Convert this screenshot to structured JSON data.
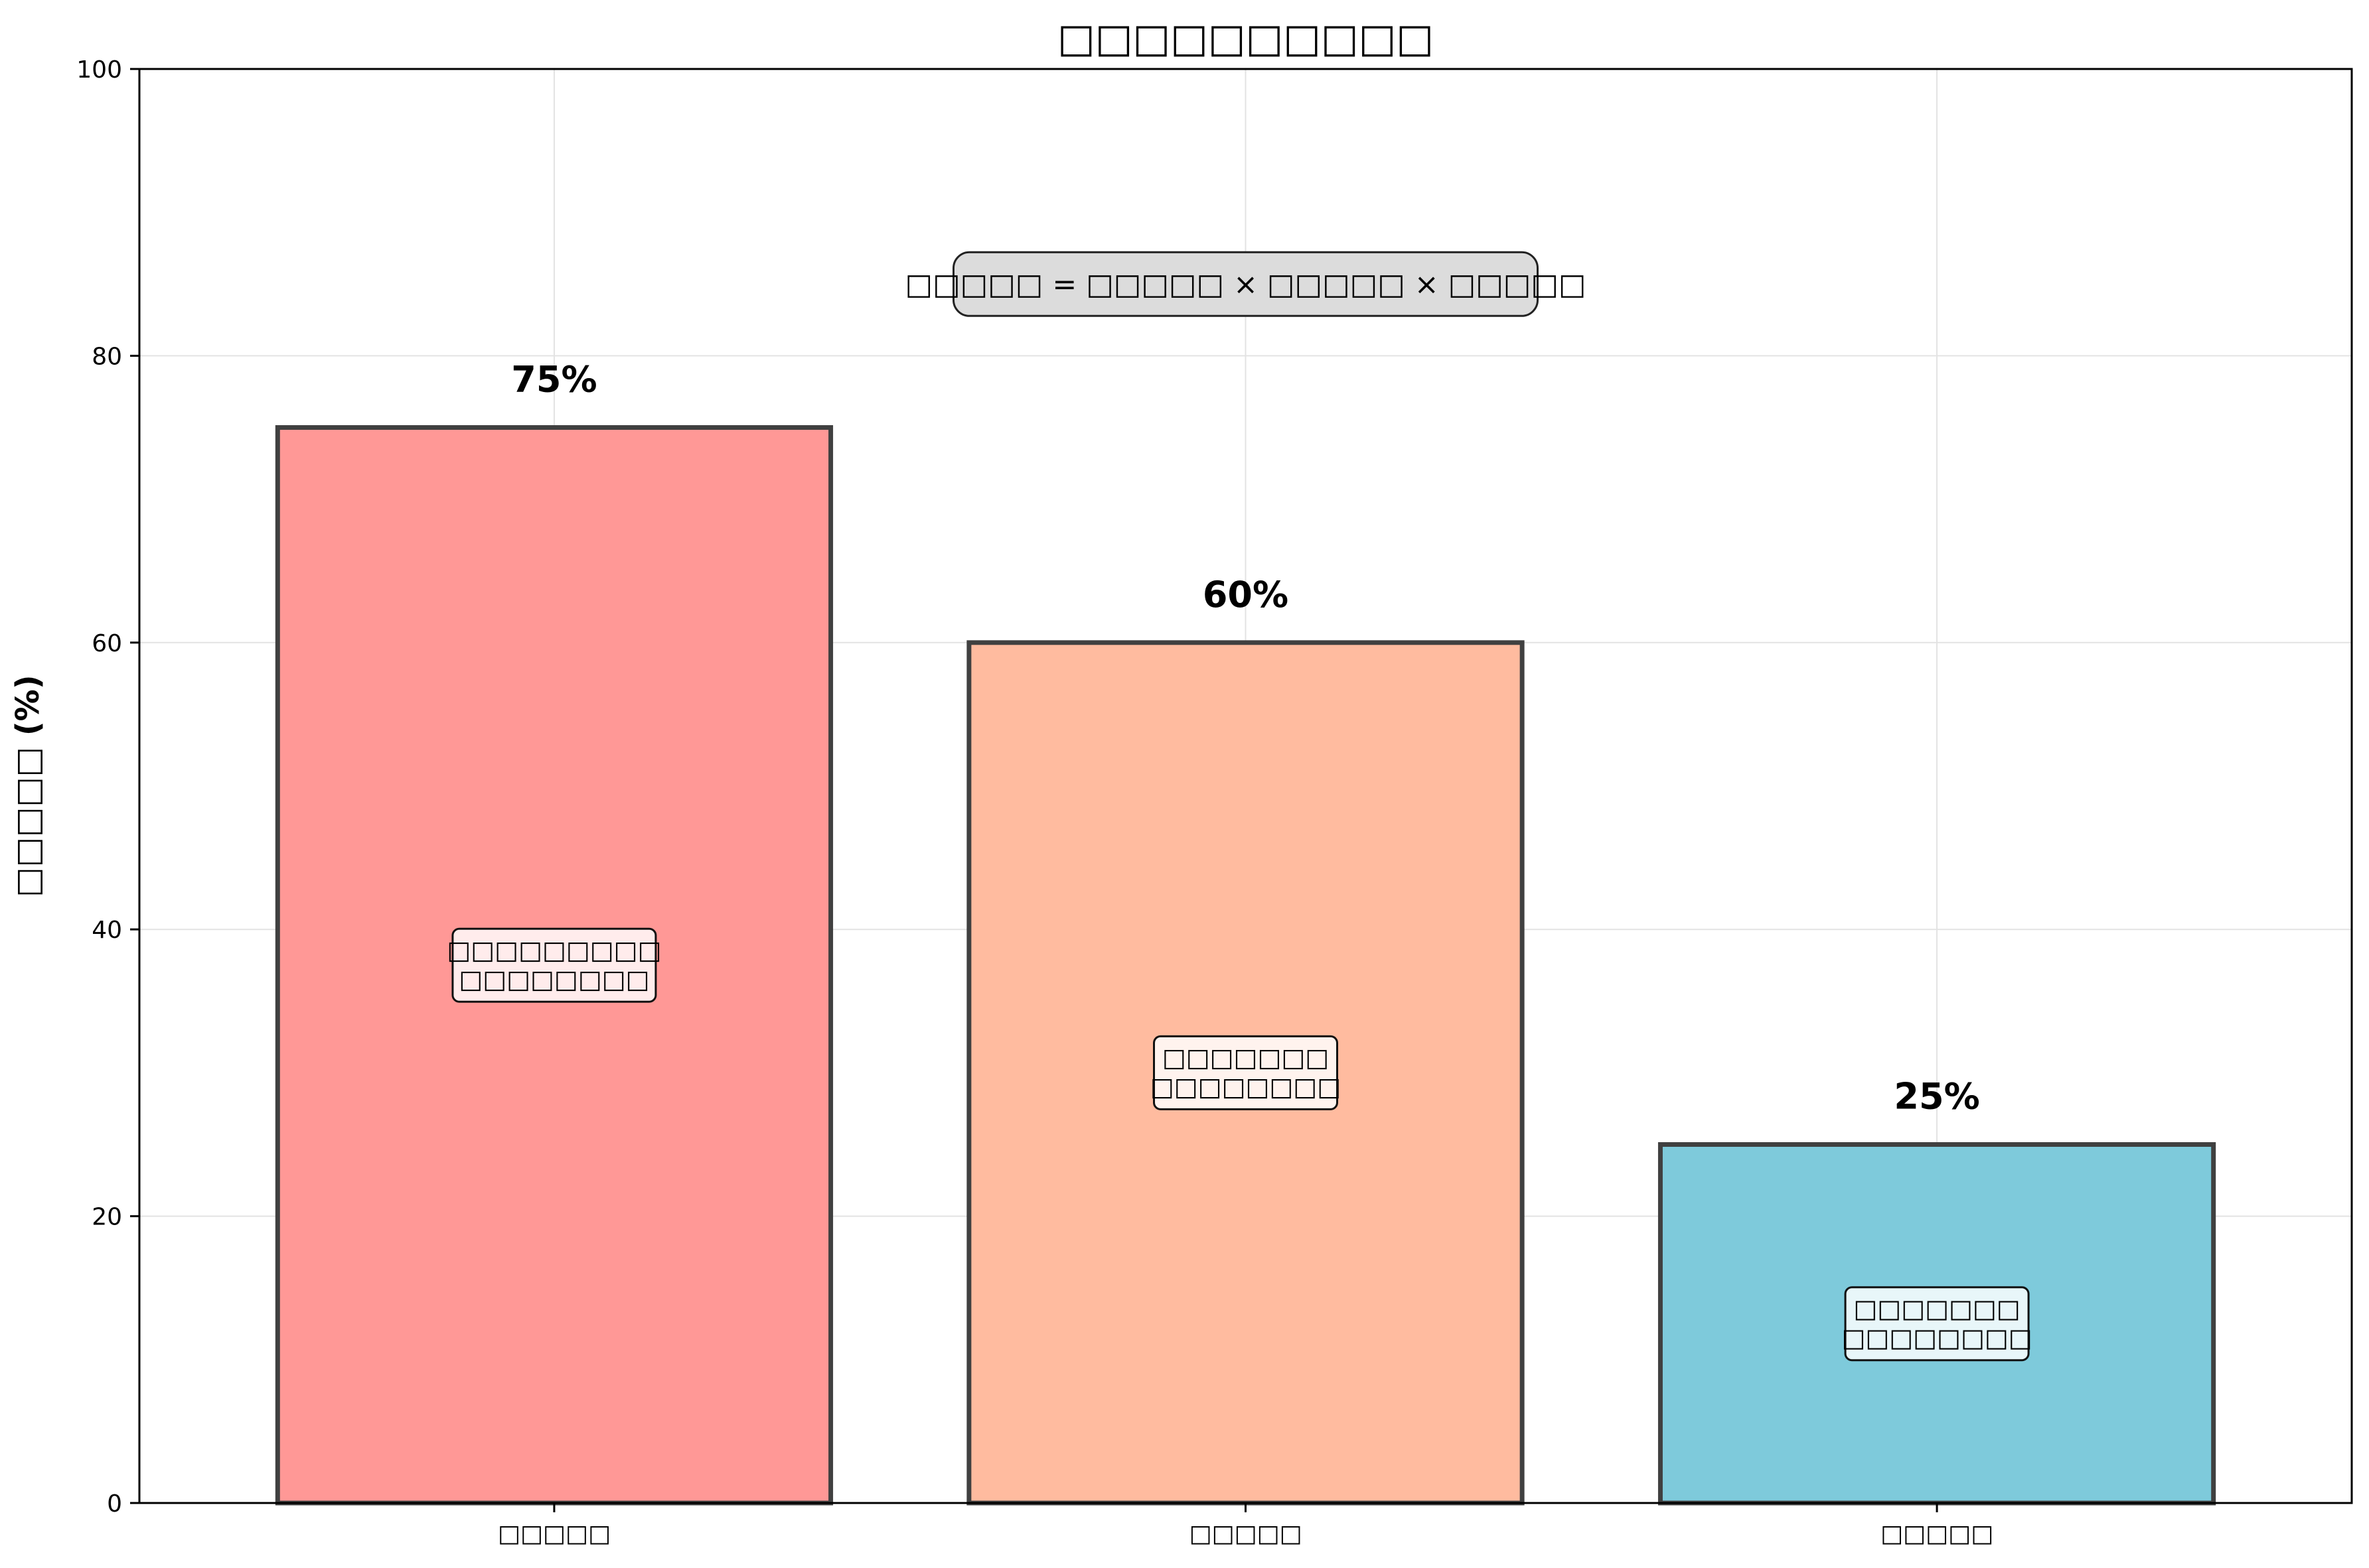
{
  "chart_data": {
    "type": "bar",
    "title": "□□□□□□□□□□",
    "xlabel": "",
    "ylabel": "□□□□□ (%)",
    "ylim": [
      0,
      100
    ],
    "yticks": [
      0,
      20,
      40,
      60,
      80,
      100
    ],
    "grid": true,
    "categories": [
      "□□□□□",
      "□□□□□",
      "□□□□□"
    ],
    "values": [
      75,
      60,
      25
    ],
    "value_labels": [
      "75%",
      "60%",
      "25%"
    ],
    "bar_colors": [
      "#ff9896",
      "#ffbb9f",
      "#7ecadb"
    ],
    "bar_edge_color": "#404040",
    "inner_annotations": [
      [
        "□□□□□□□□□",
        "□□□□□□□□"
      ],
      [
        "□□□□□□□",
        "□□□□□□□□"
      ],
      [
        "□□□□□□□",
        "□□□□□□□□"
      ]
    ],
    "formula_annotation": "□□□□□ = □□□□□ × □□□□□ × □□□□□"
  }
}
